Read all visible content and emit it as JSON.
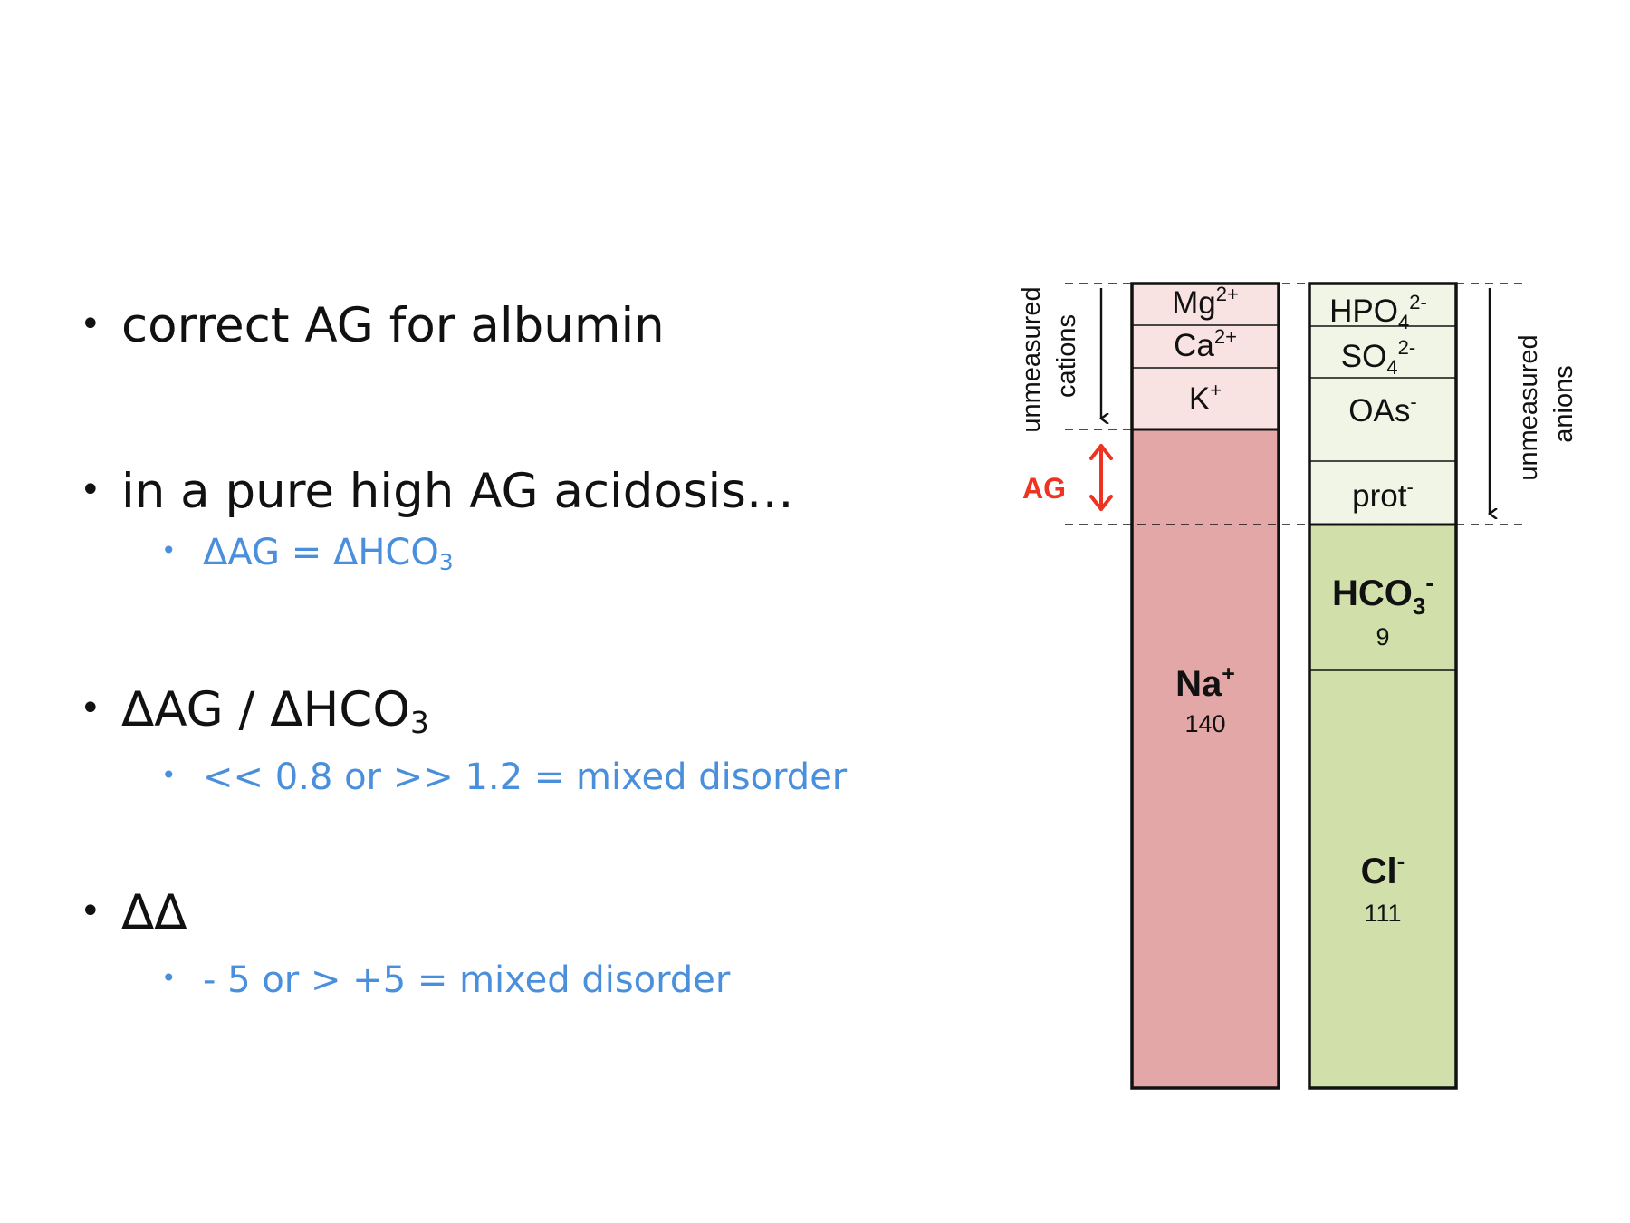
{
  "bullets": {
    "b1": "correct AG for albumin",
    "b2": "in a pure high AG acidosis…",
    "b2_sub": {
      "a": "ΔAG = ΔHCO",
      "sub": "3"
    },
    "b3": {
      "a": "ΔAG / ΔHCO",
      "sub": "3"
    },
    "b3_sub": "<< 0.8 or >> 1.2 = mixed disorder",
    "b4": "ΔΔ",
    "b4_sub": "- 5 or > +5 = mixed disorder",
    "marker": "•"
  },
  "diagram": {
    "label_unmeasured_cations": [
      "unmeasured",
      "cations"
    ],
    "label_unmeasured_anions": [
      "unmeasured",
      "anions"
    ],
    "label_ag": "AG",
    "cations": {
      "mg": {
        "base": "Mg",
        "sup": "2+"
      },
      "ca": {
        "base": "Ca",
        "sup": "2+"
      },
      "k": {
        "base": "K",
        "sup": "+"
      },
      "na": {
        "base": "Na",
        "sup": "+",
        "value": "140"
      }
    },
    "anions": {
      "hpo4": {
        "base": "HPO",
        "sub": "4",
        "sup": "2-"
      },
      "so4": {
        "base": "SO",
        "sub": "4",
        "sup": "2-"
      },
      "oas": {
        "base": "OAs",
        "sup": "-"
      },
      "prot": {
        "base": "prot",
        "sup": "-"
      },
      "hco3": {
        "base": "HCO",
        "sub": "3",
        "sup": "-",
        "value": "9"
      },
      "cl": {
        "base": "Cl",
        "sup": "-",
        "value": "111"
      }
    },
    "colors": {
      "unmeasured_cation_fill": "#f8e2e2",
      "na_fill": "#e3a7a7",
      "unmeasured_anion_fill": "#f1f5e5",
      "measured_anion_fill": "#d1dfab",
      "ag_red": "#ee3322",
      "outline": "#111111"
    }
  }
}
